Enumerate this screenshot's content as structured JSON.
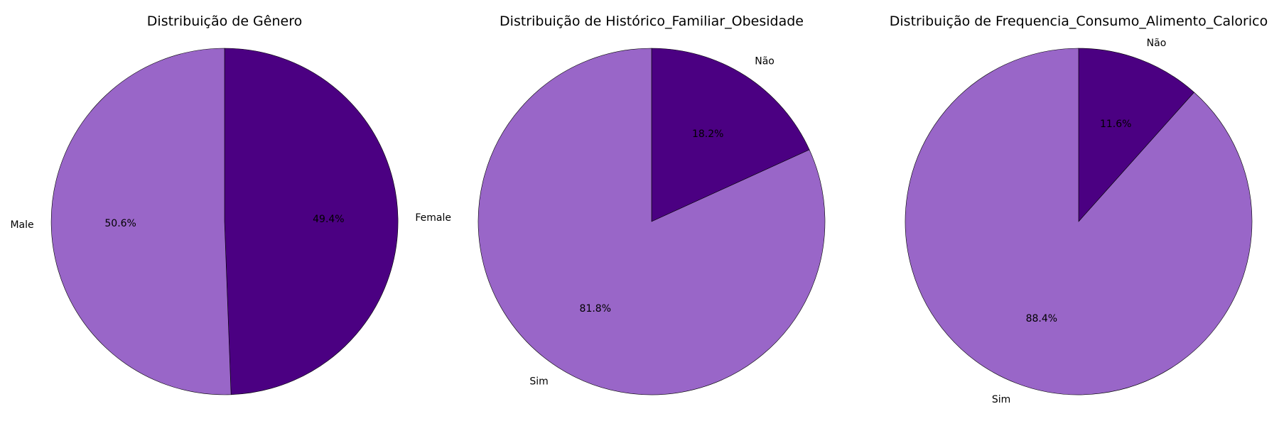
{
  "chart_data": [
    {
      "type": "pie",
      "title": "Distribuição de Gênero",
      "labels": [
        "Female",
        "Male"
      ],
      "values": [
        49.4,
        50.6
      ],
      "percent_labels": [
        "49.4%",
        "50.6%"
      ],
      "colors": [
        "#4b0082",
        "#9966c8"
      ],
      "start_angle_deg": 90,
      "direction": "clockwise"
    },
    {
      "type": "pie",
      "title": "Distribuição de Histórico_Familiar_Obesidade",
      "labels": [
        "Não",
        "Sim"
      ],
      "values": [
        18.2,
        81.8
      ],
      "percent_labels": [
        "18.2%",
        "81.8%"
      ],
      "colors": [
        "#4b0082",
        "#9966c8"
      ],
      "start_angle_deg": 90,
      "direction": "clockwise"
    },
    {
      "type": "pie",
      "title": "Distribuição de Frequencia_Consumo_Alimento_Calorico",
      "labels": [
        "Não",
        "Sim"
      ],
      "values": [
        11.6,
        88.4
      ],
      "percent_labels": [
        "11.6%",
        "88.4%"
      ],
      "colors": [
        "#4b0082",
        "#9966c8"
      ],
      "start_angle_deg": 90,
      "direction": "clockwise"
    }
  ]
}
